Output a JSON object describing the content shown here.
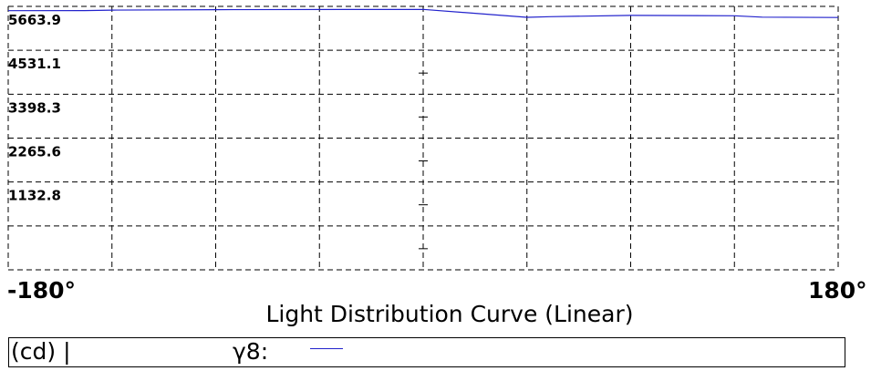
{
  "chart_data": {
    "type": "line",
    "title": "Light Distribution Curve (Linear)",
    "x_min_label": "-180°",
    "x_max_label": "180°",
    "xlim": [
      -180,
      180
    ],
    "ylim": [
      0,
      6796.7
    ],
    "y_ticks": [
      "5663.9",
      "4531.1",
      "3398.3",
      "2265.6",
      "1132.8"
    ],
    "grid": true,
    "grid_style": "dashed",
    "x_grid_count": 8,
    "unit_label": "(cd) |",
    "series": [
      {
        "name": "γ8:",
        "color": "#2222cc",
        "x": [
          -180,
          -147,
          -135,
          -90,
          0,
          45,
          55,
          90,
          135,
          147,
          180
        ],
        "y": [
          6685,
          6689,
          6701,
          6712,
          6718,
          6515,
          6532,
          6565,
          6555,
          6520,
          6510
        ]
      }
    ]
  }
}
